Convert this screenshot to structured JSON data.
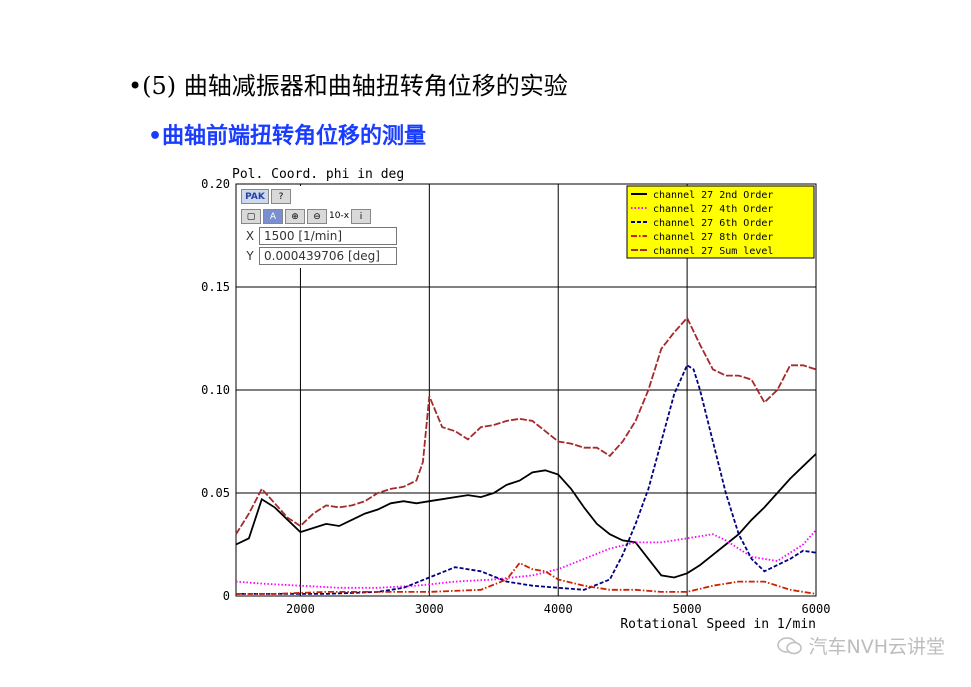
{
  "slide": {
    "heading": "•(5) 曲轴减振器和曲轴扭转角位移的实验",
    "subheading": "•曲轴前端扭转角位移的测量"
  },
  "toolbox": {
    "logo": "PAK",
    "help": "?",
    "zoom_label": "10-x",
    "x_label": "X",
    "x_value": "1500 [1/min]",
    "y_label": "Y",
    "y_value": "0.000439706 [deg]"
  },
  "watermark": {
    "text": "汽车NVH云讲堂"
  },
  "chart_data": {
    "type": "line",
    "title": "Pol. Coord. phi   in deg",
    "xlabel": "Rotational Speed   in 1/min",
    "xlim": [
      1500,
      6000
    ],
    "ylim": [
      0,
      0.2
    ],
    "x_ticks": [
      2000,
      3000,
      4000,
      5000,
      6000
    ],
    "x_tick_labels": [
      "2000",
      "3000",
      "4000",
      "5000",
      "6000"
    ],
    "y_ticks": [
      0,
      0.05,
      0.1,
      0.15,
      0.2
    ],
    "y_tick_labels": [
      "0",
      "0.05",
      "0.10",
      "0.15",
      "0.20"
    ],
    "grid": true,
    "legend_position": "top-right",
    "legend_bg": "#ffff00",
    "series": [
      {
        "name": "channel  27  2nd Order",
        "color": "#000000",
        "dash": "solid",
        "x": [
          1500,
          1600,
          1700,
          1800,
          1900,
          2000,
          2100,
          2200,
          2300,
          2400,
          2500,
          2600,
          2700,
          2800,
          2900,
          3000,
          3100,
          3200,
          3300,
          3400,
          3500,
          3600,
          3700,
          3800,
          3900,
          4000,
          4100,
          4200,
          4300,
          4400,
          4500,
          4600,
          4700,
          4800,
          4900,
          5000,
          5100,
          5200,
          5300,
          5400,
          5500,
          5600,
          5700,
          5800,
          5900,
          6000
        ],
        "y": [
          0.025,
          0.028,
          0.047,
          0.043,
          0.037,
          0.031,
          0.033,
          0.035,
          0.034,
          0.037,
          0.04,
          0.042,
          0.045,
          0.046,
          0.045,
          0.046,
          0.047,
          0.048,
          0.049,
          0.048,
          0.05,
          0.054,
          0.056,
          0.06,
          0.061,
          0.059,
          0.052,
          0.043,
          0.035,
          0.03,
          0.027,
          0.026,
          0.018,
          0.01,
          0.009,
          0.011,
          0.015,
          0.02,
          0.025,
          0.03,
          0.037,
          0.043,
          0.05,
          0.057,
          0.063,
          0.069
        ]
      },
      {
        "name": "channel  27  4th Order",
        "color": "#ff00ff",
        "dash": "dot",
        "x": [
          1500,
          1700,
          2000,
          2300,
          2600,
          2900,
          3200,
          3500,
          3800,
          4000,
          4200,
          4400,
          4600,
          4800,
          5000,
          5200,
          5300,
          5500,
          5700,
          5900,
          6000
        ],
        "y": [
          0.007,
          0.006,
          0.005,
          0.004,
          0.004,
          0.005,
          0.007,
          0.008,
          0.01,
          0.013,
          0.018,
          0.023,
          0.026,
          0.026,
          0.028,
          0.03,
          0.027,
          0.019,
          0.017,
          0.025,
          0.032
        ]
      },
      {
        "name": "channel  27  6th Order",
        "color": "#000080",
        "dash": "dash",
        "x": [
          1500,
          1800,
          2200,
          2600,
          2800,
          3000,
          3200,
          3400,
          3600,
          3800,
          4000,
          4200,
          4400,
          4500,
          4600,
          4700,
          4800,
          4900,
          5000,
          5050,
          5100,
          5200,
          5300,
          5400,
          5500,
          5600,
          5700,
          5800,
          5900,
          6000
        ],
        "y": [
          0.001,
          0.001,
          0.001,
          0.002,
          0.004,
          0.009,
          0.014,
          0.012,
          0.007,
          0.005,
          0.004,
          0.003,
          0.008,
          0.02,
          0.035,
          0.052,
          0.075,
          0.098,
          0.112,
          0.11,
          0.1,
          0.075,
          0.05,
          0.03,
          0.018,
          0.012,
          0.015,
          0.018,
          0.022,
          0.021
        ]
      },
      {
        "name": "channel  27  8th Order",
        "color": "#cc2200",
        "dash": "dashdot",
        "x": [
          1500,
          1800,
          2200,
          2600,
          3000,
          3400,
          3600,
          3700,
          3800,
          3900,
          4000,
          4200,
          4400,
          4600,
          4800,
          5000,
          5200,
          5400,
          5600,
          5800,
          6000
        ],
        "y": [
          0.001,
          0.001,
          0.002,
          0.002,
          0.002,
          0.003,
          0.008,
          0.016,
          0.013,
          0.012,
          0.008,
          0.005,
          0.003,
          0.003,
          0.002,
          0.002,
          0.005,
          0.007,
          0.007,
          0.003,
          0.001
        ]
      },
      {
        "name": "channel  27  Sum level",
        "color": "#a52a2a",
        "dash": "longdash",
        "x": [
          1500,
          1600,
          1700,
          1800,
          1900,
          2000,
          2100,
          2200,
          2300,
          2400,
          2500,
          2600,
          2700,
          2800,
          2900,
          2950,
          3000,
          3100,
          3200,
          3300,
          3400,
          3500,
          3600,
          3700,
          3800,
          3900,
          4000,
          4100,
          4200,
          4300,
          4400,
          4500,
          4600,
          4700,
          4800,
          4900,
          5000,
          5100,
          5200,
          5300,
          5400,
          5500,
          5600,
          5700,
          5800,
          5900,
          6000
        ],
        "y": [
          0.03,
          0.04,
          0.052,
          0.045,
          0.038,
          0.034,
          0.04,
          0.044,
          0.043,
          0.044,
          0.046,
          0.05,
          0.052,
          0.053,
          0.056,
          0.065,
          0.097,
          0.082,
          0.08,
          0.076,
          0.082,
          0.083,
          0.085,
          0.086,
          0.085,
          0.08,
          0.075,
          0.074,
          0.072,
          0.072,
          0.068,
          0.075,
          0.085,
          0.1,
          0.12,
          0.128,
          0.135,
          0.122,
          0.11,
          0.107,
          0.107,
          0.105,
          0.094,
          0.1,
          0.112,
          0.112,
          0.11
        ]
      }
    ]
  }
}
